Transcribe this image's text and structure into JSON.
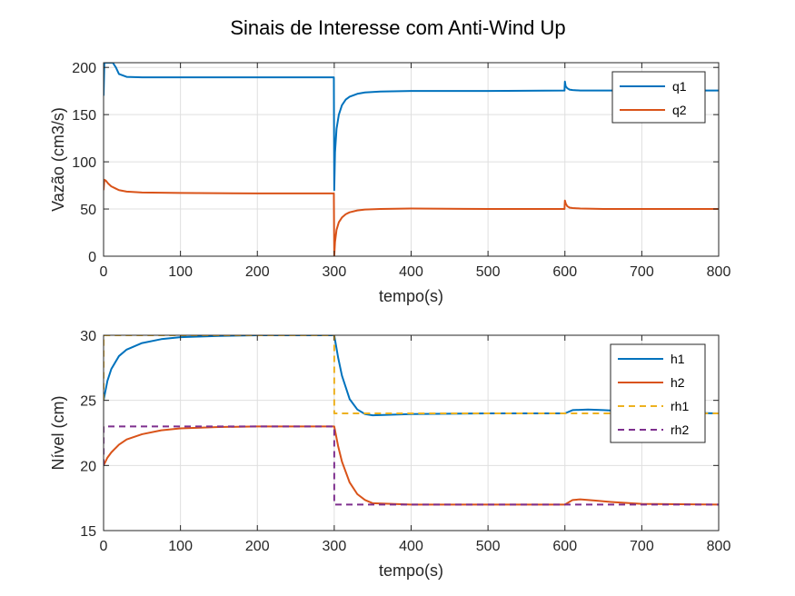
{
  "figure": {
    "title": "Sinais de Interesse com Anti-Wind Up"
  },
  "chart_data": [
    {
      "type": "line",
      "title": "",
      "xlabel": "tempo(s)",
      "ylabel": "Vazão (cm3/s)",
      "xlim": [
        0,
        800
      ],
      "ylim": [
        0,
        205
      ],
      "xticks": [
        0,
        100,
        200,
        300,
        400,
        500,
        600,
        700,
        800
      ],
      "yticks": [
        0,
        50,
        100,
        150,
        200
      ],
      "grid": true,
      "legend_position": "top-right",
      "series": [
        {
          "name": "q1",
          "color": "#0072BD",
          "dash": false,
          "x": [
            0,
            1,
            2,
            4,
            8,
            12,
            16,
            20,
            30,
            50,
            100,
            200,
            299.5,
            300,
            301,
            303,
            306,
            310,
            315,
            320,
            330,
            340,
            360,
            400,
            500,
            599.5,
            600,
            601,
            603,
            606,
            610,
            620,
            650,
            700,
            800
          ],
          "y": [
            170,
            205,
            205,
            205,
            205,
            205,
            200,
            193,
            190,
            189.5,
            189.5,
            189.5,
            189.5,
            70,
            110,
            135,
            150,
            160,
            166,
            169,
            172,
            173.5,
            174.5,
            175,
            175,
            175.5,
            185,
            180,
            178,
            176.5,
            176,
            175.5,
            175.5,
            175.5,
            175.5
          ]
        },
        {
          "name": "q2",
          "color": "#D95319",
          "dash": false,
          "x": [
            0,
            1,
            3,
            6,
            10,
            15,
            20,
            30,
            50,
            100,
            200,
            299.5,
            300,
            301,
            303,
            306,
            310,
            315,
            320,
            330,
            340,
            360,
            400,
            500,
            599.5,
            600,
            601,
            603,
            606,
            610,
            620,
            650,
            700,
            800
          ],
          "y": [
            70,
            81,
            80,
            77,
            74,
            72,
            70,
            68.5,
            67.5,
            67,
            66.5,
            66.5,
            0,
            15,
            28,
            36,
            41,
            44.5,
            46.5,
            48.5,
            49.5,
            50,
            50.5,
            50,
            50,
            59,
            56,
            53,
            51.5,
            51,
            50.5,
            50,
            50,
            50
          ]
        }
      ]
    },
    {
      "type": "line",
      "title": "",
      "xlabel": "tempo(s)",
      "ylabel": "Nível (cm)",
      "xlim": [
        0,
        800
      ],
      "ylim": [
        15,
        30
      ],
      "xticks": [
        0,
        100,
        200,
        300,
        400,
        500,
        600,
        700,
        800
      ],
      "yticks": [
        15,
        20,
        25,
        30
      ],
      "grid": true,
      "legend_position": "top-right",
      "series": [
        {
          "name": "h1",
          "color": "#0072BD",
          "dash": false,
          "x": [
            0,
            5,
            10,
            20,
            30,
            50,
            75,
            100,
            150,
            200,
            250,
            300,
            305,
            310,
            320,
            330,
            340,
            350,
            400,
            500,
            600,
            610,
            630,
            650,
            700,
            800
          ],
          "y": [
            25,
            26.5,
            27.4,
            28.4,
            28.9,
            29.4,
            29.7,
            29.85,
            29.95,
            30,
            30,
            30,
            28.3,
            26.9,
            25.1,
            24.3,
            23.95,
            23.85,
            23.95,
            24,
            24,
            24.25,
            24.3,
            24.25,
            24.1,
            24
          ]
        },
        {
          "name": "h2",
          "color": "#D95319",
          "dash": false,
          "x": [
            0,
            5,
            10,
            20,
            30,
            50,
            75,
            100,
            150,
            200,
            250,
            300,
            305,
            310,
            320,
            330,
            340,
            350,
            400,
            500,
            600,
            610,
            620,
            640,
            660,
            700,
            800
          ],
          "y": [
            20,
            20.6,
            21.0,
            21.6,
            22.0,
            22.4,
            22.7,
            22.85,
            22.95,
            23,
            23,
            23,
            21.5,
            20.3,
            18.7,
            17.8,
            17.35,
            17.1,
            17,
            17,
            17,
            17.35,
            17.4,
            17.3,
            17.2,
            17.05,
            17
          ]
        },
        {
          "name": "rh1",
          "color": "#EDB120",
          "dash": true,
          "x": [
            0,
            0.01,
            300,
            300.01,
            800
          ],
          "y": [
            25,
            30,
            30,
            24,
            24
          ]
        },
        {
          "name": "rh2",
          "color": "#7E2F8E",
          "dash": true,
          "x": [
            0,
            0.01,
            300,
            300.01,
            800
          ],
          "y": [
            20,
            23,
            23,
            17,
            17
          ]
        }
      ]
    }
  ]
}
